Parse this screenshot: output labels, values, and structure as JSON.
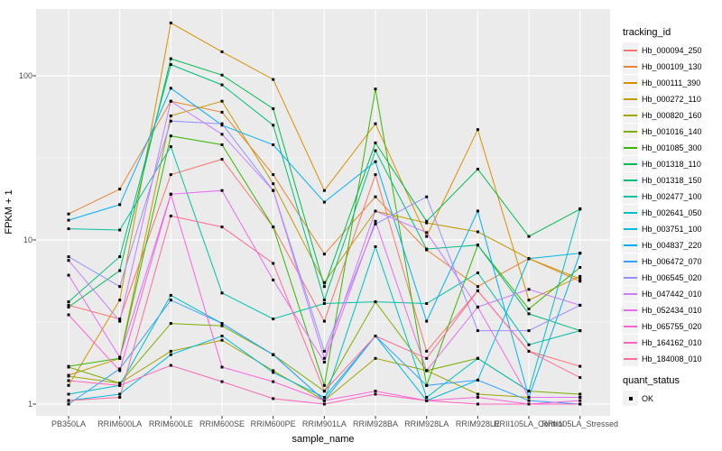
{
  "figure": {
    "panel_bg": "#ebebeb",
    "grid_color": "#ffffff",
    "axis_text_color": "#4d4d4d",
    "tick_color": "#333333",
    "point_color": "#000000"
  },
  "legend": {
    "tracking_title": "tracking_id",
    "quant_title": "quant_status",
    "quant_items": [
      {
        "label": "OK"
      }
    ]
  },
  "chart_data": {
    "type": "line",
    "title": "",
    "xlabel": "sample_name",
    "ylabel": "FPKM + 1",
    "y_scale": "log10",
    "y_tick_values": [
      1,
      10,
      100
    ],
    "y_tick_labels": [
      "1",
      "10",
      "100"
    ],
    "y_minor_values": [
      3.1623,
      31.623
    ],
    "ylim_log_range": [
      0.848,
      255
    ],
    "grid": true,
    "legend_position": "right",
    "categories": [
      "PB350LA",
      "RRIM600LA",
      "RRIM600LE",
      "RRIM600SE",
      "RRIM600PE",
      "RRIM901LA",
      "RRIM928BA",
      "RRIM928LA",
      "RRIM928LE",
      "RRII105LA_Control",
      "RRII105LA_Stressed"
    ],
    "series": [
      {
        "name": "Hb_000094_250",
        "color": "#F8766D",
        "values": [
          4.0,
          3.3,
          25,
          31,
          12,
          3.2,
          25,
          2.1,
          4.9,
          2.1,
          1.7
        ]
      },
      {
        "name": "Hb_000109_130",
        "color": "#EA8331",
        "values": [
          14.4,
          20.4,
          70,
          60,
          25,
          8.2,
          18.3,
          8.7,
          5.2,
          7.7,
          5.6
        ]
      },
      {
        "name": "Hb_000111_390",
        "color": "#D89000",
        "values": [
          1.3,
          4.3,
          210,
          140,
          95,
          20,
          51,
          10.5,
          47,
          4.3,
          6.0
        ]
      },
      {
        "name": "Hb_000272_110",
        "color": "#C09B00",
        "values": [
          1.5,
          1.9,
          57,
          70,
          22,
          5.5,
          15,
          12.7,
          11.2,
          7.7,
          5.8
        ]
      },
      {
        "name": "Hb_000820_160",
        "color": "#A3A500",
        "values": [
          1.48,
          1.34,
          2.1,
          2.45,
          1.6,
          1.05,
          1.9,
          1.6,
          1.15,
          1.1,
          1.1
        ]
      },
      {
        "name": "Hb_001016_140",
        "color": "#7CAE00",
        "values": [
          1.68,
          1.34,
          3.1,
          3.0,
          2.0,
          1.2,
          4.2,
          1.6,
          1.9,
          1.2,
          1.15
        ]
      },
      {
        "name": "Hb_001085_300",
        "color": "#39B600",
        "values": [
          1.7,
          1.9,
          43,
          38,
          12,
          1.3,
          83,
          1.3,
          9.3,
          3.8,
          6.8
        ]
      },
      {
        "name": "Hb_001318_110",
        "color": "#00BB4E",
        "values": [
          3.9,
          6.5,
          127,
          101,
          63,
          5.2,
          39,
          13,
          27,
          10.5,
          15.4
        ]
      },
      {
        "name": "Hb_001318_150",
        "color": "#00BF7D",
        "values": [
          4.2,
          7.9,
          117,
          88,
          50,
          4.3,
          35,
          8.8,
          9.3,
          3.55,
          2.8
        ]
      },
      {
        "name": "Hb_002477_100",
        "color": "#00C1A3",
        "values": [
          11.7,
          11.5,
          37,
          4.75,
          3.3,
          4.1,
          4.2,
          4.1,
          6.3,
          2.3,
          2.8
        ]
      },
      {
        "name": "Hb_002641_050",
        "color": "#00BFC4",
        "values": [
          1.15,
          1.3,
          4.6,
          3.1,
          2.0,
          1.05,
          9.1,
          1.1,
          1.9,
          1.2,
          15.5
        ]
      },
      {
        "name": "Hb_003751_100",
        "color": "#00BAE0",
        "values": [
          1.05,
          1.15,
          2.0,
          2.6,
          1.56,
          1.1,
          2.6,
          1.05,
          1.4,
          7.7,
          8.3
        ]
      },
      {
        "name": "Hb_004837_220",
        "color": "#00B0F6",
        "values": [
          13.2,
          16.4,
          84,
          50,
          38,
          17,
          30,
          3.2,
          15,
          1.1,
          8.3
        ]
      },
      {
        "name": "Hb_006472_070",
        "color": "#35A2FF",
        "values": [
          1.0,
          1.64,
          4.3,
          3.1,
          2.0,
          1.05,
          2.6,
          1.3,
          1.4,
          1.05,
          1.0
        ]
      },
      {
        "name": "Hb_006545_020",
        "color": "#9590FF",
        "values": [
          7.9,
          5.2,
          53,
          51,
          20,
          2.1,
          12.5,
          18.3,
          2.8,
          2.8,
          4.0
        ]
      },
      {
        "name": "Hb_047442_010",
        "color": "#C77CFF",
        "values": [
          7.5,
          3.2,
          70,
          44,
          20,
          1.9,
          15,
          11.1,
          3.9,
          5.0,
          4.0
        ]
      },
      {
        "name": "Hb_052434_010",
        "color": "#E76BF3",
        "values": [
          6.1,
          1.93,
          19,
          20,
          5.7,
          1.8,
          13,
          1.6,
          3.9,
          1.1,
          1.1
        ]
      },
      {
        "name": "Hb_065755_020",
        "color": "#FA62DB",
        "values": [
          3.5,
          1.6,
          19,
          1.68,
          1.37,
          1.05,
          1.2,
          1.05,
          1.1,
          1.0,
          1.05
        ]
      },
      {
        "name": "Hb_164162_010",
        "color": "#FF62BC",
        "values": [
          1.39,
          1.3,
          1.72,
          1.37,
          1.08,
          1.0,
          1.15,
          1.05,
          1.0,
          1.0,
          1.0
        ]
      },
      {
        "name": "Hb_184008_010",
        "color": "#FF6A98",
        "values": [
          1.05,
          1.1,
          14,
          12,
          7.2,
          1.2,
          2.6,
          1.9,
          4.9,
          2.1,
          1.45
        ]
      }
    ]
  }
}
